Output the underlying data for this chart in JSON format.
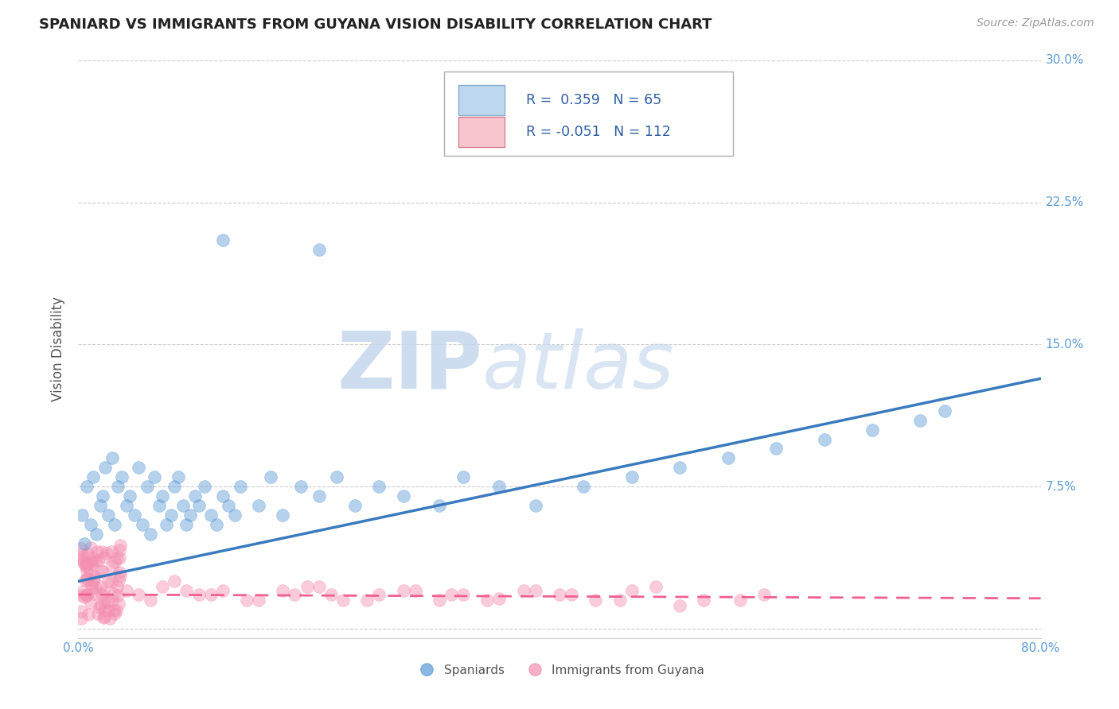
{
  "title": "SPANIARD VS IMMIGRANTS FROM GUYANA VISION DISABILITY CORRELATION CHART",
  "source_text": "Source: ZipAtlas.com",
  "ylabel": "Vision Disability",
  "xlim": [
    0.0,
    0.8
  ],
  "ylim": [
    -0.005,
    0.3
  ],
  "yticks": [
    0.0,
    0.075,
    0.15,
    0.225,
    0.3
  ],
  "ytick_labels": [
    "",
    "7.5%",
    "15.0%",
    "22.5%",
    "30.0%"
  ],
  "xticks": [
    0.0,
    0.8
  ],
  "xtick_labels": [
    "0.0%",
    "80.0%"
  ],
  "background_color": "#ffffff",
  "grid_color": "#cccccc",
  "tick_color": "#5b9bd5",
  "scatter1_color": "#5b9bd5",
  "scatter2_color": "#f48fb1",
  "line1_color": "#3a7abf",
  "line2_color": "#f06090",
  "legend_box_color1": "#bdd7ee",
  "legend_box_color2": "#f9c6d0",
  "legend_text_color": "#2e5fa3",
  "watermark_color": "#dce6f0",
  "label1": "Spaniards",
  "label2": "Immigrants from Guyana",
  "R1": 0.359,
  "N1": 65,
  "R2": -0.051,
  "N2": 112,
  "span_line_x0": 0.0,
  "span_line_y0": 0.025,
  "span_line_x1": 0.8,
  "span_line_y1": 0.132,
  "guy_line_x0": 0.0,
  "guy_line_y0": 0.018,
  "guy_line_x1": 0.8,
  "guy_line_y1": 0.016
}
